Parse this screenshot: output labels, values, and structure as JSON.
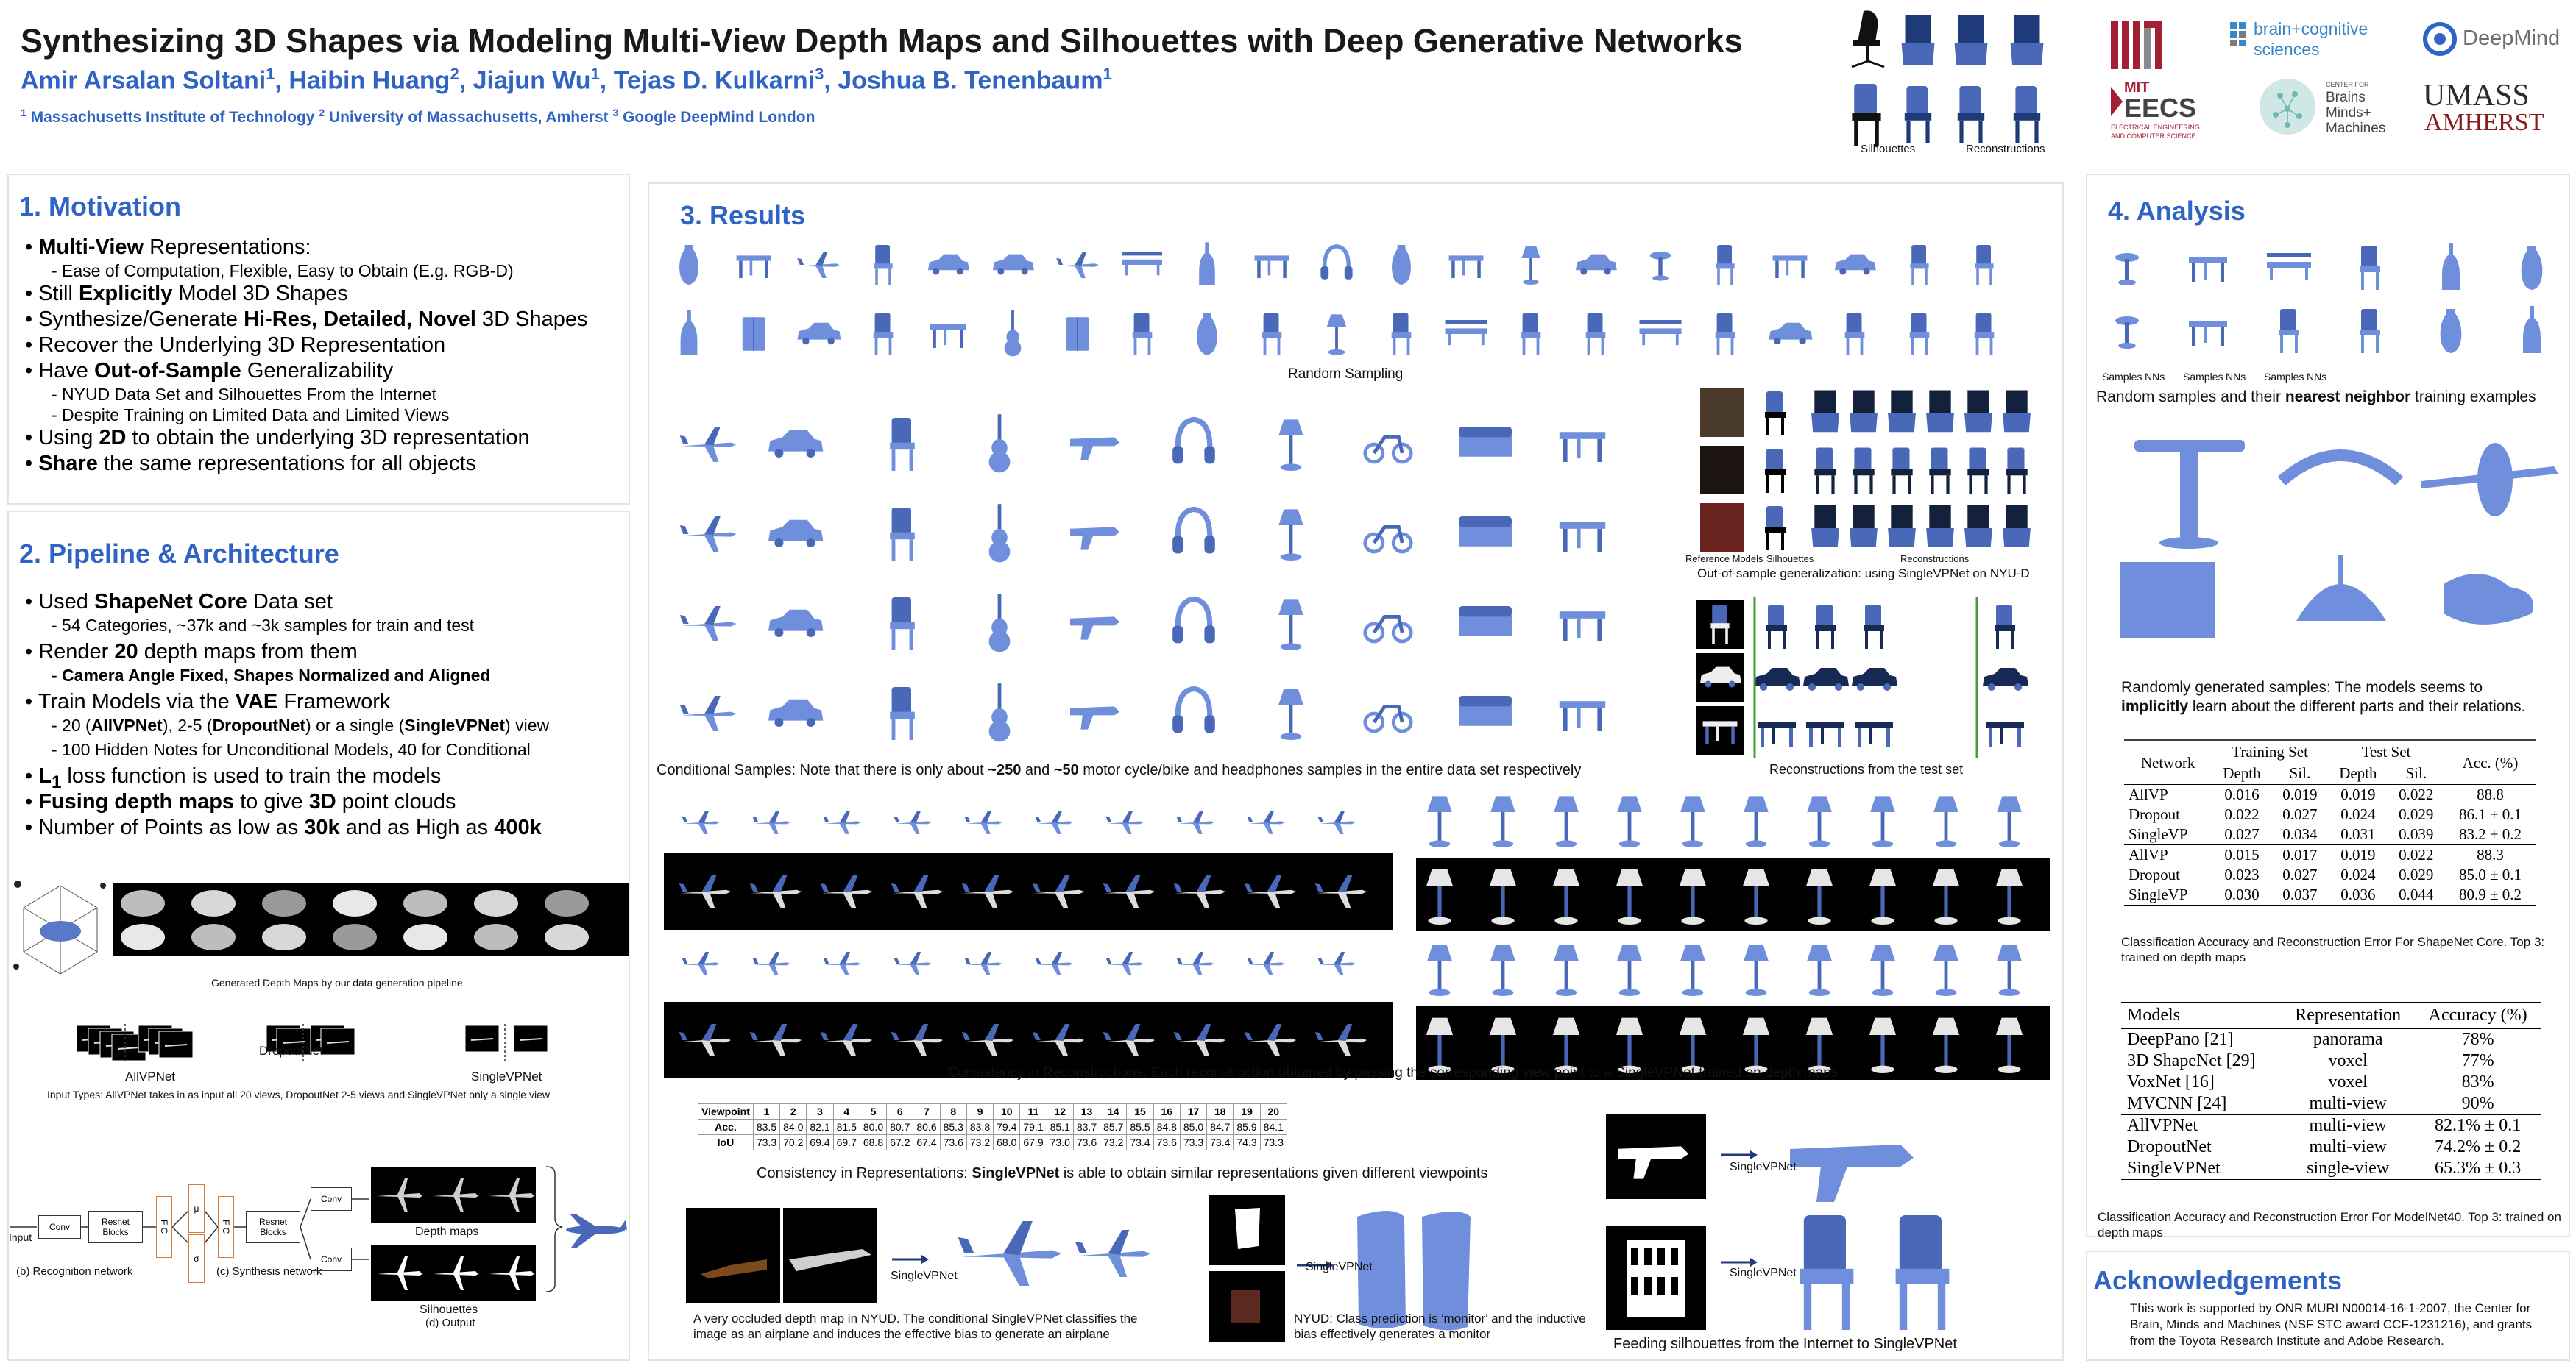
{
  "header": {
    "title": "Synthesizing 3D Shapes via Modeling Multi-View Depth Maps and Silhouettes with Deep Generative Networks",
    "authors": [
      {
        "name": "Amir Arsalan Soltani",
        "sup": "1"
      },
      {
        "name": "Haibin Huang",
        "sup": "2"
      },
      {
        "name": "Jiajun Wu",
        "sup": "1"
      },
      {
        "name": "Tejas D. Kulkarni",
        "sup": "3"
      },
      {
        "name": "Joshua B. Tenenbaum",
        "sup": "1"
      }
    ],
    "affiliations": [
      {
        "sup": "1",
        "name": "Massachusetts Institute of Technology"
      },
      {
        "sup": "2",
        "name": "University of Massachusetts, Amherst"
      },
      {
        "sup": "3",
        "name": "Google DeepMind London"
      }
    ],
    "teaser": {
      "silhouettes_label": "Silhouettes",
      "reconstructions_label": "Reconstructions"
    },
    "logos": {
      "mit": "MIT",
      "bcs_line1": "brain+cognitive",
      "bcs_line2": "sciences",
      "deepmind": "DeepMind",
      "eecs_top": "MIT",
      "eecs_main": "EECS",
      "eecs_sub1": "ELECTRICAL ENGINEERING",
      "eecs_sub2": "AND COMPUTER SCIENCE",
      "cbmm_top": "CENTER FOR",
      "cbmm_1": "Brains",
      "cbmm_2": "Minds+",
      "cbmm_3": "Machines",
      "umass_1": "UMASS",
      "umass_2": "AMHERST"
    }
  },
  "motivation": {
    "title": "1. Motivation",
    "items": [
      {
        "level": 1,
        "parts": [
          {
            "t": "Multi-View",
            "b": true
          },
          {
            "t": " Representations:"
          }
        ]
      },
      {
        "level": 2,
        "parts": [
          {
            "t": "- Ease of Computation, Flexible, Easy to Obtain (E.g. RGB-D)"
          }
        ]
      },
      {
        "level": 1,
        "parts": [
          {
            "t": "Still "
          },
          {
            "t": "Explicitly",
            "b": true
          },
          {
            "t": " Model 3D Shapes"
          }
        ]
      },
      {
        "level": 1,
        "parts": [
          {
            "t": "Synthesize/Generate "
          },
          {
            "t": "Hi-Res, Detailed, Novel",
            "b": true
          },
          {
            "t": " 3D Shapes"
          }
        ]
      },
      {
        "level": 1,
        "parts": [
          {
            "t": "Recover the Underlying 3D Representation"
          }
        ]
      },
      {
        "level": 1,
        "parts": [
          {
            "t": "Have "
          },
          {
            "t": "Out-of-Sample",
            "b": true
          },
          {
            "t": " Generalizability"
          }
        ]
      },
      {
        "level": 2,
        "parts": [
          {
            "t": "- NYUD Data Set and Silhouettes From the Internet"
          }
        ]
      },
      {
        "level": 2,
        "parts": [
          {
            "t": "- Despite Training on Limited Data and Limited Views"
          }
        ]
      },
      {
        "level": 1,
        "parts": [
          {
            "t": "Using "
          },
          {
            "t": "2D",
            "b": true
          },
          {
            "t": " to obtain the underlying 3D representation"
          }
        ]
      },
      {
        "level": 1,
        "parts": [
          {
            "t": "Share",
            "b": true
          },
          {
            "t": " the same representations for all objects"
          }
        ]
      }
    ]
  },
  "pipeline": {
    "title": "2. Pipeline & Architecture",
    "items": [
      {
        "level": 1,
        "parts": [
          {
            "t": "Used "
          },
          {
            "t": "ShapeNet Core",
            "b": true
          },
          {
            "t": " Data set"
          }
        ]
      },
      {
        "level": 2,
        "parts": [
          {
            "t": "- 54 Categories, ~37k and ~3k samples for train and test"
          }
        ]
      },
      {
        "level": 1,
        "parts": [
          {
            "t": "Render "
          },
          {
            "t": "20",
            "b": true
          },
          {
            "t": " depth maps from them"
          }
        ]
      },
      {
        "level": 2,
        "parts": [
          {
            "t": "- Camera Angle Fixed, Shapes Normalized and Aligned",
            "b": true
          }
        ]
      },
      {
        "level": 1,
        "parts": [
          {
            "t": "Train Models via the "
          },
          {
            "t": "VAE",
            "b": true
          },
          {
            "t": " Framework"
          }
        ]
      },
      {
        "level": 2,
        "parts": [
          {
            "t": "- 20 ("
          },
          {
            "t": "AllVPNet",
            "b": true
          },
          {
            "t": "), 2-5 ("
          },
          {
            "t": "DropoutNet",
            "b": true
          },
          {
            "t": ") or a single ("
          },
          {
            "t": "SingleVPNet",
            "b": true
          },
          {
            "t": ") view"
          }
        ]
      },
      {
        "level": 2,
        "parts": [
          {
            "t": "- 100 Hidden Notes for Unconditional Models, 40 for Conditional"
          }
        ]
      },
      {
        "level": 1,
        "parts": [
          {
            "t": "L",
            "b": true
          },
          {
            "t": "1",
            "b": true,
            "sub": true
          },
          {
            "t": " loss function is used to train the models"
          }
        ]
      },
      {
        "level": 1,
        "parts": [
          {
            "t": "Fusing depth maps",
            "b": true
          },
          {
            "t": " to give "
          },
          {
            "t": "3D",
            "b": true
          },
          {
            "t": " point clouds"
          }
        ]
      },
      {
        "level": 1,
        "parts": [
          {
            "t": "Number of Points as low as "
          },
          {
            "t": "30k",
            "b": true
          },
          {
            "t": " and as High as "
          },
          {
            "t": "400k",
            "b": true
          }
        ]
      }
    ],
    "depth_caption": "Generated Depth Maps by our data generation pipeline",
    "input_labels": {
      "allvp": "AllVPNet",
      "dropout": "DropoutNet",
      "single": "SingleVPNet"
    },
    "input_caption": "Input Types: AllVPNet takes in  as input all 20 views, DropoutNet 2-5 views and SingleVPNet only a single view",
    "arch": {
      "input": "Input",
      "conv": "Conv",
      "resnet": "Resnet Blocks",
      "fc": "F C",
      "mu": "μ",
      "sigma": "σ",
      "z": "Z",
      "depth_maps": "Depth maps",
      "silhouettes": "Silhouettes",
      "recog": "(b) Recognition network",
      "synth": "(c) Synthesis network",
      "output": "(d) Output"
    }
  },
  "results": {
    "title": "3. Results",
    "random_sampling": "Random Sampling",
    "conditional_caption_a": "Conditional Samples: Note that there is only about ",
    "conditional_b1": "~250",
    "conditional_caption_b": " and ",
    "conditional_b2": "~50",
    "conditional_caption_c": " motor cycle/bike and headphones samples in the entire data set respectively",
    "ref_models": "Reference Models",
    "ref_sil": "Silhouettes",
    "ref_recon": "Reconstructions",
    "oos_caption": "Out-of-sample generalization: using SingleVPNet on NYU-D",
    "test_caption": "Reconstructions from the test set",
    "consistency_caption": "Consistency in Reconstructions. Each reconstruction obtained by passing the corresponding view point to a SingleVPNet trained on depth maps",
    "vp_table": {
      "header_label": "Viewpoint",
      "viewpoints": [
        "1",
        "2",
        "3",
        "4",
        "5",
        "6",
        "7",
        "8",
        "9",
        "10",
        "11",
        "12",
        "13",
        "14",
        "15",
        "16",
        "17",
        "18",
        "19",
        "20"
      ],
      "rows": [
        {
          "label": "Acc.",
          "values": [
            "83.5",
            "84.0",
            "82.1",
            "81.5",
            "80.0",
            "80.7",
            "80.6",
            "85.3",
            "83.8",
            "79.4",
            "79.1",
            "85.1",
            "83.7",
            "85.7",
            "85.5",
            "84.8",
            "85.0",
            "84.7",
            "85.9",
            "84.1"
          ]
        },
        {
          "label": "IoU",
          "values": [
            "73.3",
            "70.2",
            "69.4",
            "69.7",
            "68.8",
            "67.2",
            "67.4",
            "73.6",
            "73.2",
            "68.0",
            "67.9",
            "73.0",
            "73.6",
            "73.2",
            "73.4",
            "73.6",
            "73.3",
            "73.4",
            "74.3",
            "73.3"
          ]
        }
      ]
    },
    "rep_caption_a": "Consistency in Representations: ",
    "rep_caption_b": "SingleVPNet",
    "rep_caption_c": " is able to obtain similar representations given different viewpoints",
    "singlevpnet": "SingleVPNet",
    "nyud_caption": "A very occluded depth map in NYUD. The conditional SingleVPNet classifies the image as an airplane and induces the effective bias to generate an airplane",
    "monitor_caption": "NYUD: Class prediction is 'monitor' and the inductive bias effectively generates a monitor",
    "internet_caption": "Feeding silhouettes from the Internet to SingleVPNet"
  },
  "analysis": {
    "title": "4. Analysis",
    "nn_labels": [
      "Samples",
      "NNs",
      "Samples",
      "NNs",
      "Samples",
      "NNs"
    ],
    "nn_caption_a": "Random samples and their ",
    "nn_caption_b": "nearest neighbor",
    "nn_caption_c": " training examples",
    "gen_caption_a": "Randomly generated samples: The models seems to",
    "gen_caption_b": "implicitly",
    "gen_caption_c": " learn about the different parts and their relations.",
    "table1": {
      "col_network": "Network",
      "col_train": "Training Set",
      "col_test": "Test Set",
      "col_acc": "Acc. (%)",
      "sub_depth": "Depth",
      "sub_sil": "Sil.",
      "group1": [
        [
          "AllVP",
          "0.016",
          "0.019",
          "0.019",
          "0.022",
          "88.8"
        ],
        [
          "Dropout",
          "0.022",
          "0.027",
          "0.024",
          "0.029",
          "86.1 ± 0.1"
        ],
        [
          "SingleVP",
          "0.027",
          "0.034",
          "0.031",
          "0.039",
          "83.2 ± 0.2"
        ]
      ],
      "group2": [
        [
          "AllVP",
          "0.015",
          "0.017",
          "0.019",
          "0.022",
          "88.3"
        ],
        [
          "Dropout",
          "0.023",
          "0.027",
          "0.024",
          "0.029",
          "85.0 ± 0.1"
        ],
        [
          "SingleVP",
          "0.030",
          "0.037",
          "0.036",
          "0.044",
          "80.9 ± 0.2"
        ]
      ],
      "caption": "Classification Accuracy and Reconstruction Error For ShapeNet Core. Top 3: trained on depth maps"
    },
    "table2": {
      "col_models": "Models",
      "col_rep": "Representation",
      "col_acc": "Accuracy (%)",
      "group1": [
        [
          "DeepPano [21]",
          "panorama",
          "78%"
        ],
        [
          "3D ShapeNet [29]",
          "voxel",
          "77%"
        ],
        [
          "VoxNet [16]",
          "voxel",
          "83%"
        ],
        [
          "MVCNN [24]",
          "multi-view",
          "90%"
        ]
      ],
      "group2": [
        [
          "AllVPNet",
          "multi-view",
          "82.1% ± 0.1"
        ],
        [
          "DropoutNet",
          "multi-view",
          "74.2% ± 0.2"
        ],
        [
          "SingleVPNet",
          "single-view",
          "65.3% ± 0.3"
        ]
      ],
      "caption": "Classification Accuracy and Reconstruction Error For ModelNet40. Top 3: trained on depth maps"
    }
  },
  "ack": {
    "title": "Acknowledgements",
    "text": "This work is supported by ONR MURI N00014-16-1-2007, the Center for Brain, Minds and Machines (NSF STC award CCF-1231216), and grants from the Toyota Research Institute and Adobe Research."
  },
  "colors": {
    "accent": "#2f64c4",
    "shape": "#6f8fdc",
    "shape_dark": "#4a68b8",
    "navy": "#1f3a78",
    "mit_red": "#a31f34",
    "umass": "#881c1c"
  }
}
